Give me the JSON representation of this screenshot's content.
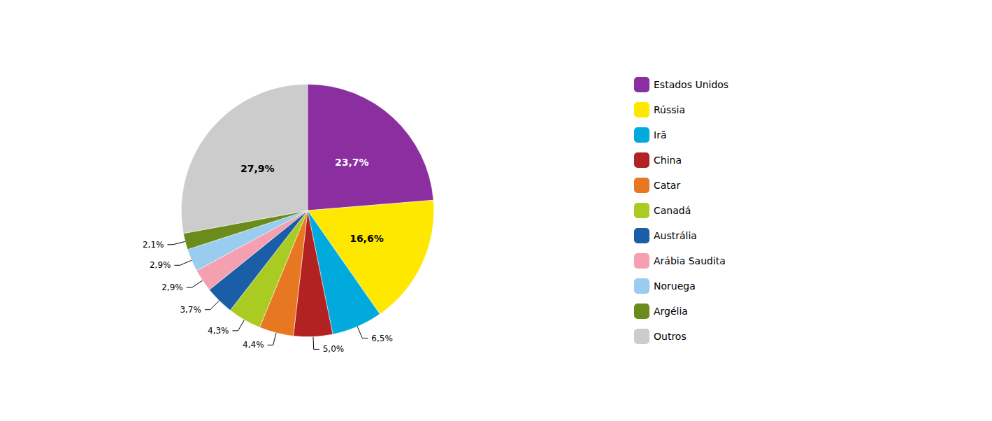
{
  "chart_data": {
    "type": "pie",
    "categories": [
      "Estados Unidos",
      "Rússia",
      "Irã",
      "China",
      "Catar",
      "Canadá",
      "Austrália",
      "Arábia Saudita",
      "Noruega",
      "Argélia",
      "Outros"
    ],
    "values": [
      23.7,
      16.6,
      6.5,
      5.0,
      4.4,
      4.3,
      3.7,
      2.9,
      2.9,
      2.1,
      27.9
    ],
    "value_labels": [
      "23,7%",
      "16,6%",
      "6,5%",
      "5,0%",
      "4,4%",
      "4,3%",
      "3,7%",
      "2,9%",
      "2,9%",
      "2,1%",
      "27,9%"
    ],
    "colors": [
      "#8B2EA0",
      "#FFE800",
      "#00AADD",
      "#B22222",
      "#E87722",
      "#AACC22",
      "#1A5EA8",
      "#F4A0B0",
      "#99CCEE",
      "#6B8C1A",
      "#CCCCCC"
    ],
    "data_labels": true,
    "legend": "right"
  }
}
